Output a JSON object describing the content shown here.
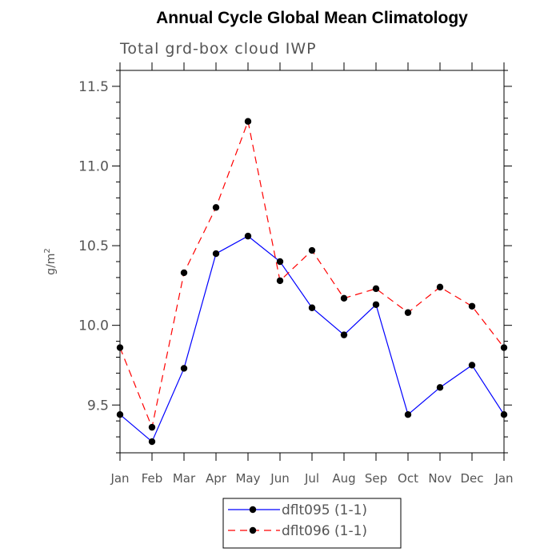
{
  "chart_data": {
    "type": "line",
    "title": "Annual Cycle Global Mean Climatology",
    "subtitle": "Total grd-box cloud IWP",
    "xlabel": "",
    "ylabel": "g/m",
    "ylabel_superscript": "2",
    "categories": [
      "Jan",
      "Feb",
      "Mar",
      "Apr",
      "May",
      "Jun",
      "Jul",
      "Aug",
      "Sep",
      "Oct",
      "Nov",
      "Dec",
      "Jan"
    ],
    "ylim": [
      9.2,
      11.6
    ],
    "yticks": [
      9.5,
      10.0,
      10.5,
      11.0,
      11.5
    ],
    "ytick_labels": [
      "9.5",
      "10.0",
      "10.5",
      "11.0",
      "11.5"
    ],
    "series": [
      {
        "name": "dflt095 (1-1)",
        "color": "#0000ff",
        "dash": "solid",
        "values": [
          9.44,
          9.27,
          9.73,
          10.45,
          10.56,
          10.4,
          10.11,
          9.94,
          10.13,
          9.44,
          9.61,
          9.75,
          9.44
        ]
      },
      {
        "name": "dflt096 (1-1)",
        "color": "#ff0000",
        "dash": "dashed",
        "values": [
          9.86,
          9.36,
          10.33,
          10.74,
          11.28,
          10.28,
          10.47,
          10.17,
          10.23,
          10.08,
          10.24,
          10.12,
          9.86
        ]
      }
    ],
    "legend_position": "bottom-center",
    "grid": false
  }
}
